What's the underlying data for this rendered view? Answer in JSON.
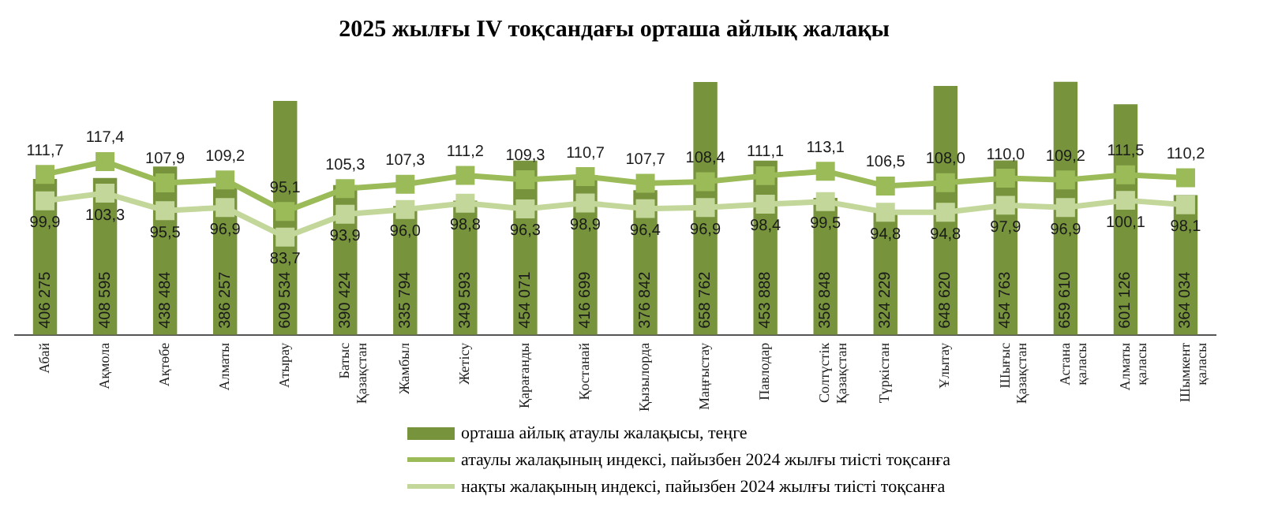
{
  "chart_data": {
    "type": "bar",
    "title": "2025 жылғы IV тоқсандағы орташа айлық жалақы",
    "categories": [
      "Абай",
      "Ақмола",
      "Ақтөбе",
      "Алматы",
      "Атырау",
      "Батыс Қазақстан",
      "Жамбыл",
      "Жетісу",
      "Қарағанды",
      "Қостанай",
      "Қызылорда",
      "Маңғыстау",
      "Павлодар",
      "Солтүстік Қазақстан",
      "Түркістан",
      "Ұлытау",
      "Шығыс Қазақстан",
      "Астана қаласы",
      "Алматы қаласы",
      "Шымкент қаласы"
    ],
    "series": [
      {
        "name": "орташа айлық  атаулы жалақысы,  теңге",
        "color": "#77933c",
        "values": [
          406275,
          408595,
          438484,
          386257,
          609534,
          390424,
          335794,
          349593,
          454071,
          416699,
          376842,
          658762,
          453888,
          356848,
          324229,
          648620,
          454763,
          659610,
          601126,
          364034
        ],
        "value_labels": [
          "406 275",
          "408 595",
          "438 484",
          "386 257",
          "609 534",
          "390 424",
          "335 794",
          "349 593",
          "454 071",
          "416 699",
          "376 842",
          "658 762",
          "453 888",
          "356 848",
          "324 229",
          "648 620",
          "454 763",
          "659 610",
          "601 126",
          "364 034"
        ]
      },
      {
        "name": "атаулы жалақының индексі, пайызбен 2024  жылғы тиісті тоқсанға",
        "type": "line",
        "axis": "y2",
        "color": "#9bbb59",
        "values": [
          111.7,
          117.4,
          107.9,
          109.2,
          95.1,
          105.3,
          107.3,
          111.2,
          109.3,
          110.7,
          107.7,
          108.4,
          111.1,
          113.1,
          106.5,
          108.0,
          110.0,
          109.2,
          111.5,
          110.2
        ],
        "value_labels": [
          "111,7",
          "117,4",
          "107,9",
          "109,2",
          "95,1",
          "105,3",
          "107,3",
          "111,2",
          "109,3",
          "110,7",
          "107,7",
          "108,4",
          "111,1",
          "113,1",
          "106,5",
          "108,0",
          "110,0",
          "109,2",
          "111,5",
          "110,2"
        ]
      },
      {
        "name": "нақты жалақының индексі, пайызбен 2024  жылғы тиісті тоқсанға",
        "type": "line",
        "axis": "y2",
        "color": "#c4d79b",
        "values": [
          99.9,
          103.3,
          95.5,
          96.9,
          83.7,
          93.9,
          96.0,
          98.8,
          96.3,
          98.9,
          96.4,
          96.9,
          98.4,
          99.5,
          94.8,
          94.8,
          97.9,
          96.9,
          100.1,
          98.1
        ],
        "value_labels": [
          "99,9",
          "103,3",
          "95,5",
          "96,9",
          "83,7",
          "93,9",
          "96,0",
          "98,8",
          "96,3",
          "98,9",
          "96,4",
          "96,9",
          "98,4",
          "99,5",
          "94,8",
          "94,8",
          "97,9",
          "96,9",
          "100,1",
          "98,1"
        ]
      }
    ],
    "tick_labels": "x",
    "marker": "square",
    "legend": "bottom"
  }
}
